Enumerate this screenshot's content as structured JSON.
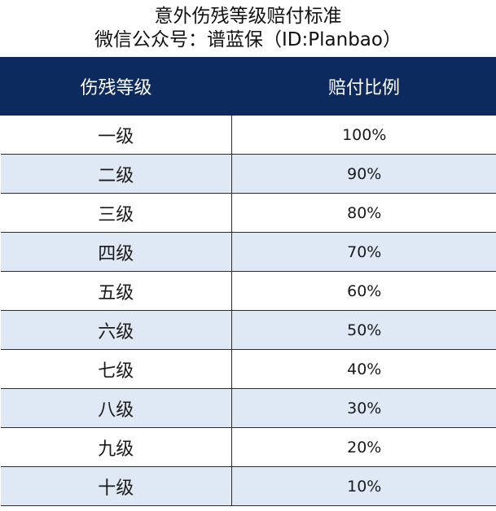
{
  "title": {
    "line1": "意外伤残等级赔付标准",
    "line2": "微信公众号：谱蓝保（ID:Planbao）"
  },
  "table": {
    "headers": [
      "伤残等级",
      "赔付比例"
    ],
    "rows": [
      {
        "level": "一级",
        "ratio": "100%"
      },
      {
        "level": "二级",
        "ratio": "90%"
      },
      {
        "level": "三级",
        "ratio": "80%"
      },
      {
        "level": "四级",
        "ratio": "70%"
      },
      {
        "level": "五级",
        "ratio": "60%"
      },
      {
        "level": "六级",
        "ratio": "50%"
      },
      {
        "level": "七级",
        "ratio": "40%"
      },
      {
        "level": "八级",
        "ratio": "30%"
      },
      {
        "level": "九级",
        "ratio": "20%"
      },
      {
        "level": "十级",
        "ratio": "10%"
      }
    ]
  },
  "colors": {
    "header_bg": "#0c2a5e",
    "stripe_bg": "#dfe9f5"
  }
}
